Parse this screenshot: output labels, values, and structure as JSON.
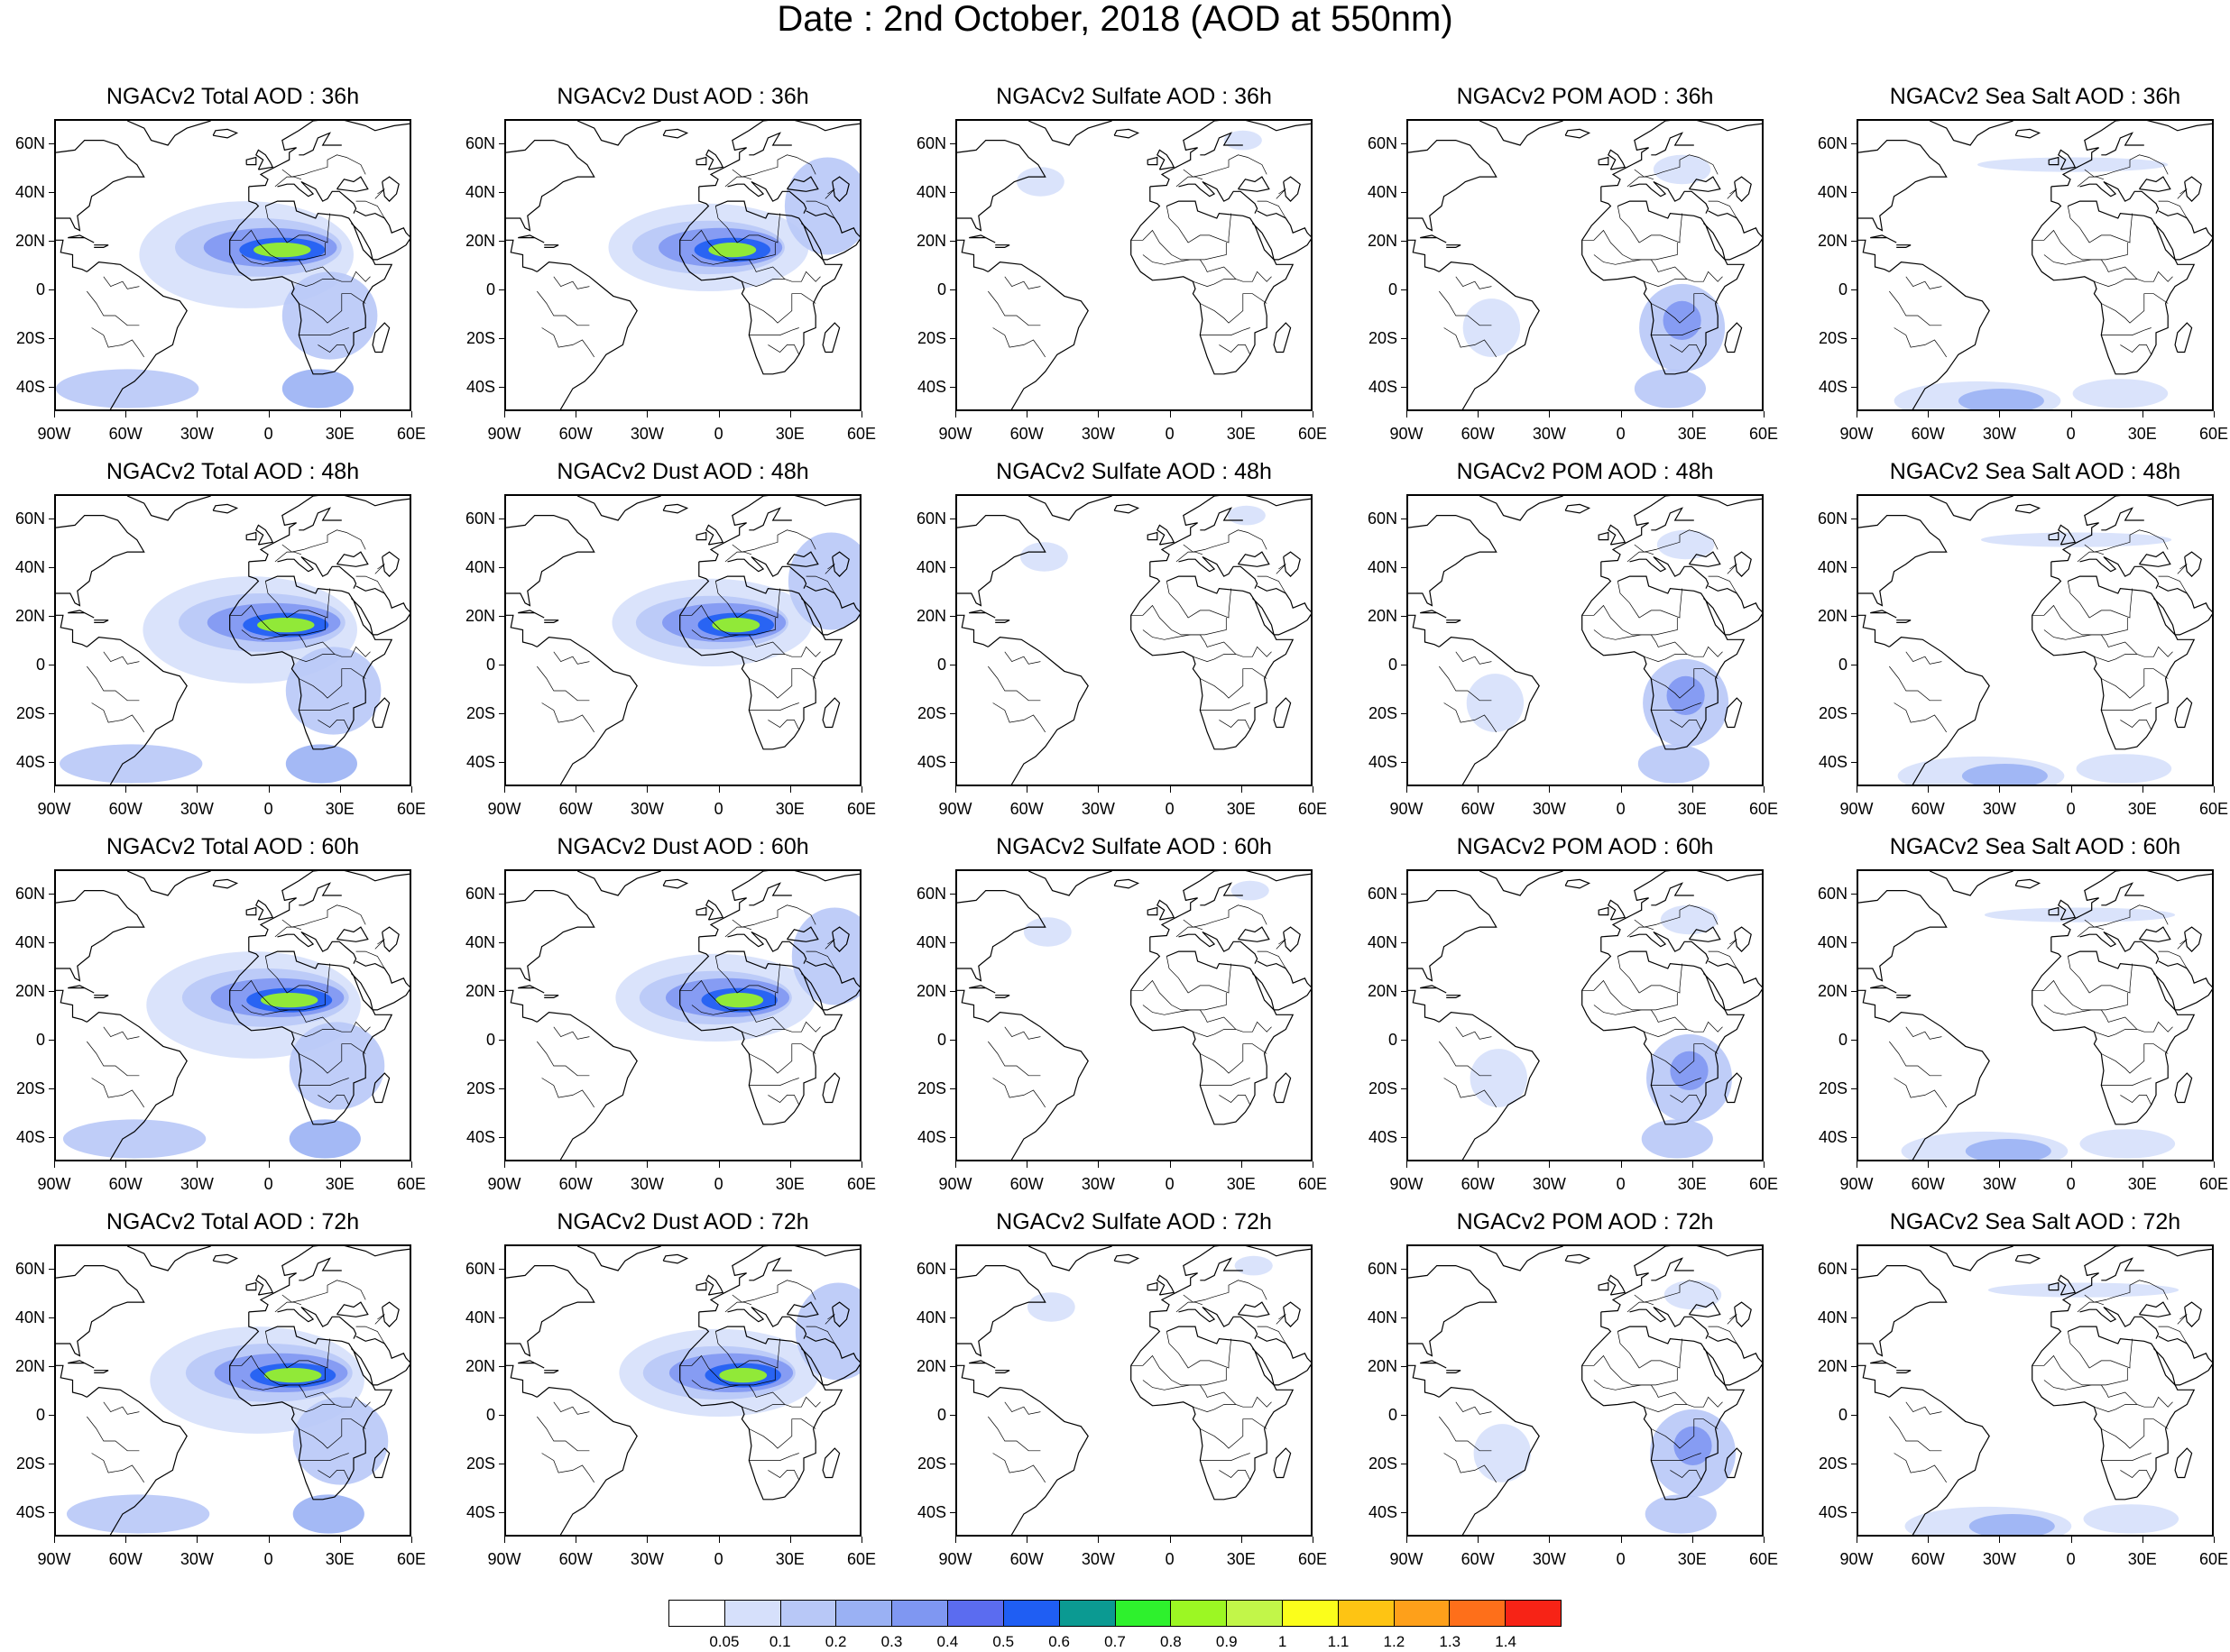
{
  "title": "Date : 2nd October, 2018 (AOD at 550nm)",
  "grid": {
    "rows": [
      "36h",
      "48h",
      "60h",
      "72h"
    ],
    "columns": [
      "Total",
      "Dust",
      "Sulfate",
      "POM",
      "Sea Salt"
    ],
    "panel_titles": [
      [
        "NGACv2 Total AOD : 36h",
        "NGACv2 Dust AOD : 36h",
        "NGACv2 Sulfate AOD : 36h",
        "NGACv2 POM AOD : 36h",
        "NGACv2 Sea Salt AOD : 36h"
      ],
      [
        "NGACv2 Total AOD : 48h",
        "NGACv2 Dust AOD : 48h",
        "NGACv2 Sulfate AOD : 48h",
        "NGACv2 POM AOD : 48h",
        "NGACv2 Sea Salt AOD : 48h"
      ],
      [
        "NGACv2 Total AOD : 60h",
        "NGACv2 Dust AOD : 60h",
        "NGACv2 Sulfate AOD : 60h",
        "NGACv2 POM AOD : 60h",
        "NGACv2 Sea Salt AOD : 60h"
      ],
      [
        "NGACv2 Total AOD : 72h",
        "NGACv2 Dust AOD : 72h",
        "NGACv2 Sulfate AOD : 72h",
        "NGACv2 POM AOD : 72h",
        "NGACv2 Sea Salt  AOD : 72h"
      ]
    ]
  },
  "map_extent": {
    "lon": [
      -90,
      60
    ],
    "lat": [
      -50,
      70
    ]
  },
  "lat_labels": [
    "60N",
    "40N",
    "20N",
    "0",
    "20S",
    "40S"
  ],
  "lon_labels": [
    "90W",
    "60W",
    "30W",
    "0",
    "30E",
    "60E"
  ],
  "colorbar": {
    "labels": [
      "0.05",
      "0.1",
      "0.2",
      "0.3",
      "0.4",
      "0.5",
      "0.6",
      "0.7",
      "0.8",
      "0.9",
      "1",
      "1.1",
      "1.2",
      "1.3",
      "1.4"
    ],
    "colors": [
      "#ffffff",
      "#d6e0fb",
      "#b8c8f7",
      "#9ab1f4",
      "#7f97f2",
      "#5b6cf0",
      "#1f5ef3",
      "#0b9a92",
      "#2ef12d",
      "#9cf723",
      "#c2f649",
      "#fbfe1b",
      "#fec413",
      "#fea01a",
      "#fe6f1a",
      "#f72316"
    ]
  },
  "colors": {
    "land_outline": "#000000",
    "frame": "#000000"
  }
}
